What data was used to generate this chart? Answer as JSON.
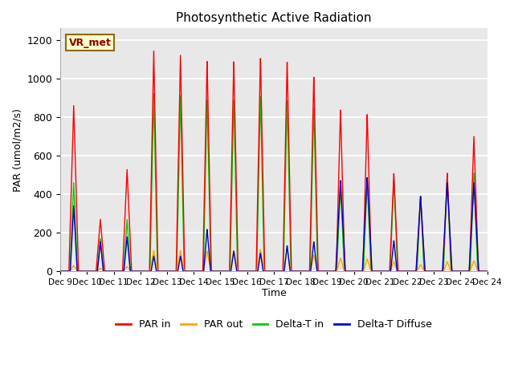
{
  "title": "Photosynthetic Active Radiation",
  "ylabel": "PAR (umol/m2/s)",
  "xlabel": "Time",
  "annotation": "VR_met",
  "x_tick_labels": [
    "Dec 9",
    "Dec 10",
    "Dec 11",
    "Dec 12",
    "Dec 13",
    "Dec 14",
    "Dec 15",
    "Dec 16",
    "Dec 17",
    "Dec 18",
    "Dec 19",
    "Dec 20",
    "Dec 21",
    "Dec 22",
    "Dec 23",
    "Dec 24"
  ],
  "ylim": [
    0,
    1260
  ],
  "yticks": [
    0,
    200,
    400,
    600,
    800,
    1000,
    1200
  ],
  "legend_labels": [
    "PAR in",
    "PAR out",
    "Delta-T in",
    "Delta-T Diffuse"
  ],
  "colors": {
    "par_in": "#ff0000",
    "par_out": "#ffa500",
    "delta_t_in": "#00cc00",
    "delta_t_diffuse": "#0000cc"
  },
  "background_color": "#e8e8e8",
  "grid_color": "#ffffff",
  "daily_peaks_par_in": [
    860,
    270,
    530,
    1150,
    1130,
    1100,
    1100,
    1120,
    1100,
    1020,
    845,
    820,
    510,
    390,
    510,
    700
  ],
  "daily_peaks_par_out": [
    30,
    15,
    25,
    110,
    110,
    105,
    110,
    115,
    110,
    85,
    70,
    65,
    50,
    35,
    50,
    55
  ],
  "daily_peaks_delta_t_in": [
    460,
    170,
    270,
    930,
    920,
    900,
    900,
    920,
    900,
    860,
    450,
    480,
    480,
    390,
    500,
    510
  ],
  "daily_peaks_delta_t_diffuse": [
    340,
    155,
    180,
    80,
    80,
    220,
    105,
    95,
    135,
    155,
    475,
    490,
    160,
    390,
    460,
    460
  ],
  "pulse_widths_par_in": [
    0.18,
    0.16,
    0.17,
    0.16,
    0.16,
    0.16,
    0.16,
    0.16,
    0.16,
    0.16,
    0.16,
    0.16,
    0.16,
    0.16,
    0.16,
    0.17
  ],
  "pulse_widths_delta_t_in": [
    0.14,
    0.12,
    0.13,
    0.14,
    0.14,
    0.14,
    0.14,
    0.14,
    0.14,
    0.14,
    0.14,
    0.14,
    0.14,
    0.13,
    0.14,
    0.14
  ],
  "pulse_widths_delta_t_diffuse_narrow": [
    0.13,
    0.11,
    0.12,
    0.1,
    0.1,
    0.13,
    0.11,
    0.1,
    0.11,
    0.12,
    0.18,
    0.18,
    0.12,
    0.17,
    0.18,
    0.18
  ],
  "figsize": [
    6.4,
    4.8
  ],
  "dpi": 100
}
